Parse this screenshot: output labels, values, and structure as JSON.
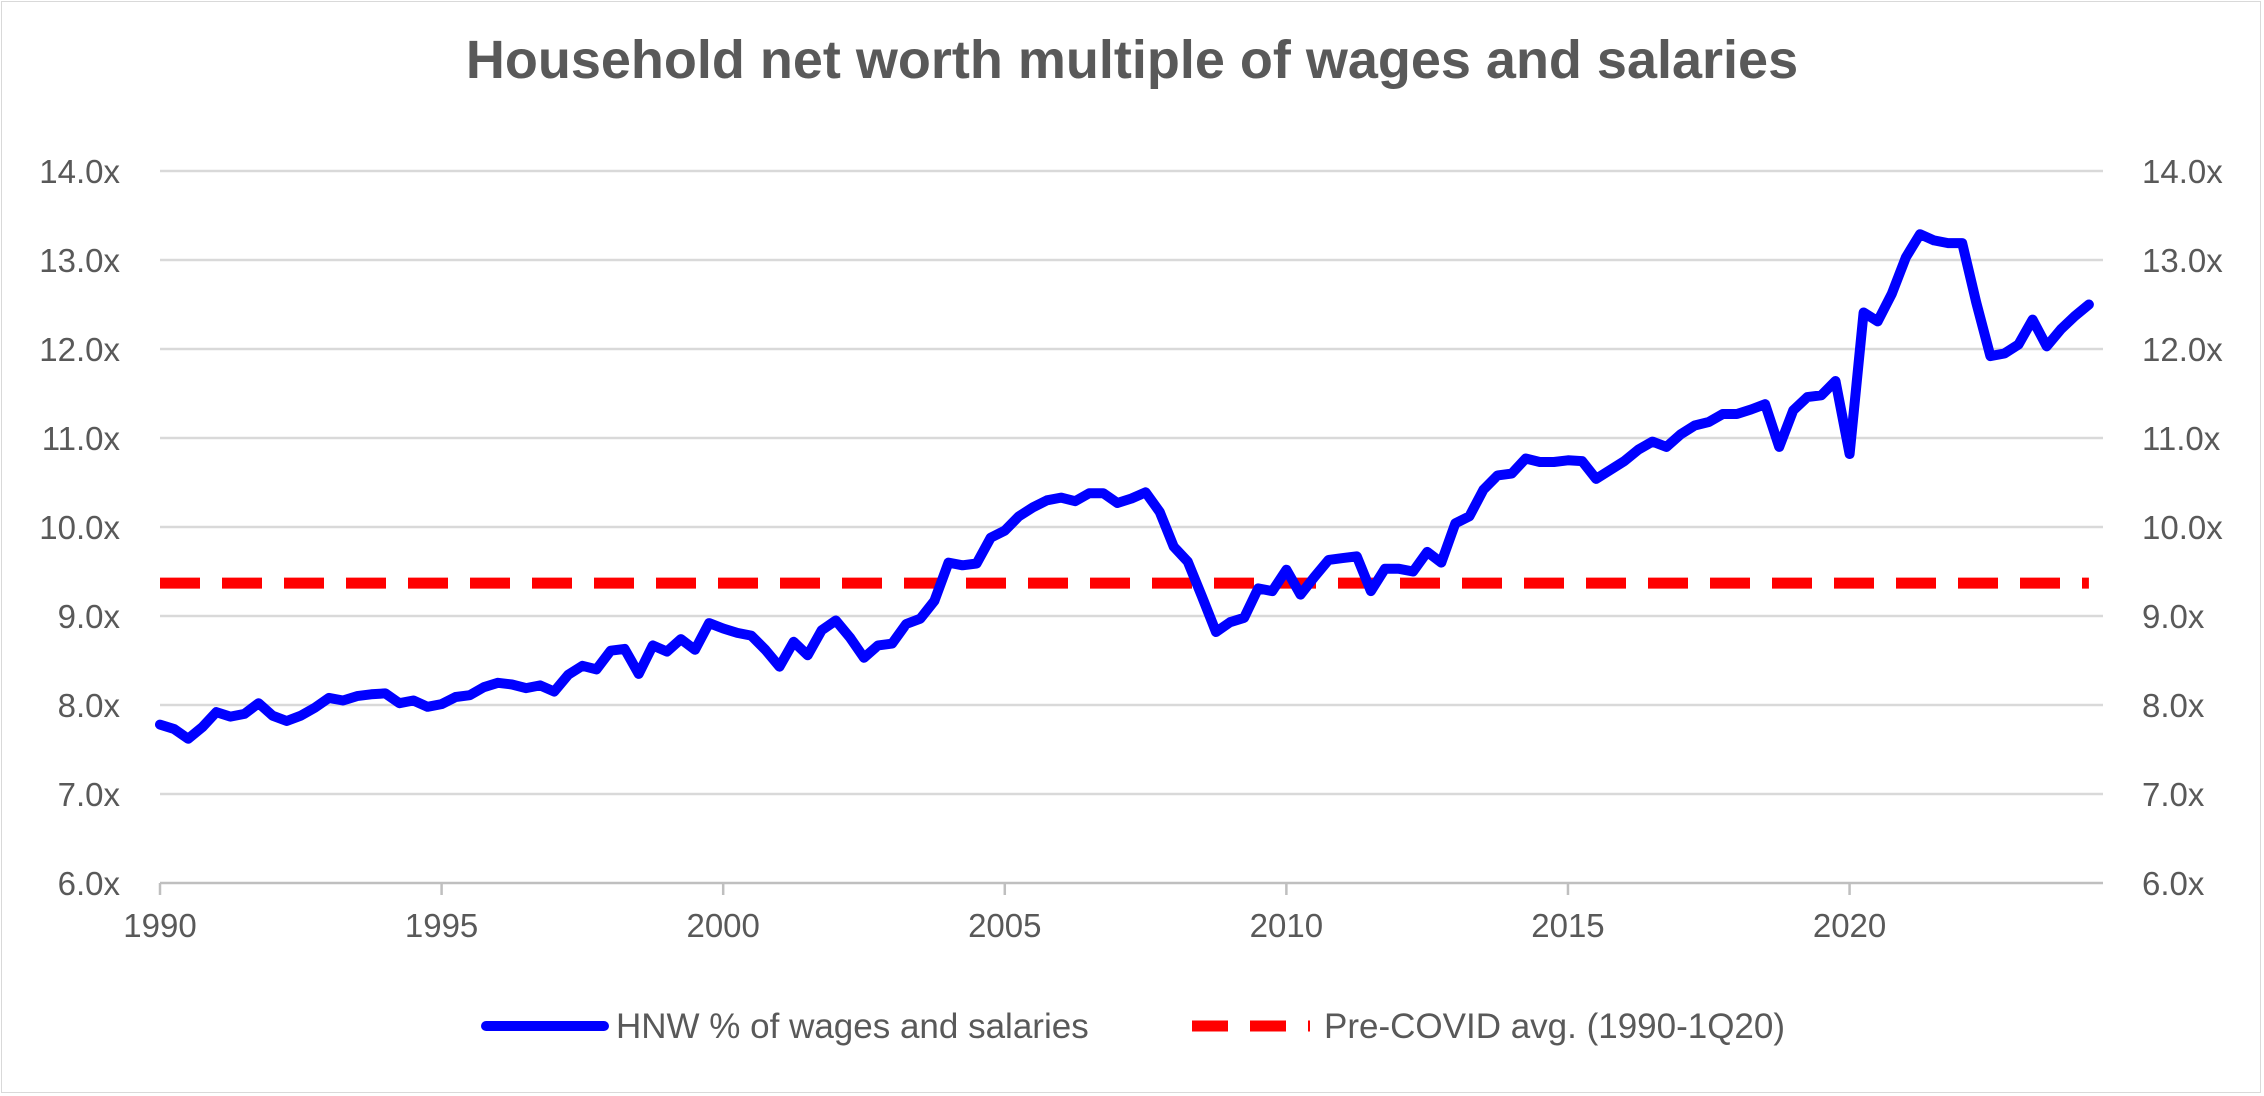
{
  "chart_data": {
    "type": "line",
    "title": "Household net worth multiple of wages and salaries",
    "xlabel": "",
    "ylabel": "",
    "xlim": [
      1990,
      2024.5
    ],
    "ylim": [
      6.0,
      14.0
    ],
    "x_ticks": [
      1990,
      1995,
      2000,
      2005,
      2010,
      2015,
      2020
    ],
    "x_tick_labels": [
      "1990",
      "1995",
      "2000",
      "2005",
      "2010",
      "2015",
      "2020"
    ],
    "y_ticks": [
      6,
      7,
      8,
      9,
      10,
      11,
      12,
      13,
      14
    ],
    "y_tick_labels": [
      "6.0x",
      "7.0x",
      "8.0x",
      "9.0x",
      "10.0x",
      "11.0x",
      "12.0x",
      "13.0x",
      "14.0x"
    ],
    "secondary_y_tick_labels": [
      "6.0x",
      "7.0x",
      "8.0x",
      "9.0x",
      "10.0x",
      "11.0x",
      "12.0x",
      "13.0x",
      "14.0x"
    ],
    "grid": true,
    "legend_position": "bottom",
    "series": [
      {
        "name": "HNW % of wages and salaries",
        "color": "#0000ff",
        "style": "solid",
        "x": [
          1990.0,
          1990.25,
          1990.5,
          1990.75,
          1991.0,
          1991.25,
          1991.5,
          1991.75,
          1992.0,
          1992.25,
          1992.5,
          1992.75,
          1993.0,
          1993.25,
          1993.5,
          1993.75,
          1994.0,
          1994.25,
          1994.5,
          1994.75,
          1995.0,
          1995.25,
          1995.5,
          1995.75,
          1996.0,
          1996.25,
          1996.5,
          1996.75,
          1997.0,
          1997.25,
          1997.5,
          1997.75,
          1998.0,
          1998.25,
          1998.5,
          1998.75,
          1999.0,
          1999.25,
          1999.5,
          1999.75,
          2000.0,
          2000.25,
          2000.5,
          2000.75,
          2001.0,
          2001.25,
          2001.5,
          2001.75,
          2002.0,
          2002.25,
          2002.5,
          2002.75,
          2003.0,
          2003.25,
          2003.5,
          2003.75,
          2004.0,
          2004.25,
          2004.5,
          2004.75,
          2005.0,
          2005.25,
          2005.5,
          2005.75,
          2006.0,
          2006.25,
          2006.5,
          2006.75,
          2007.0,
          2007.25,
          2007.5,
          2007.75,
          2008.0,
          2008.25,
          2008.5,
          2008.75,
          2009.0,
          2009.25,
          2009.5,
          2009.75,
          2010.0,
          2010.25,
          2010.5,
          2010.75,
          2011.0,
          2011.25,
          2011.5,
          2011.75,
          2012.0,
          2012.25,
          2012.5,
          2012.75,
          2013.0,
          2013.25,
          2013.5,
          2013.75,
          2014.0,
          2014.25,
          2014.5,
          2014.75,
          2015.0,
          2015.25,
          2015.5,
          2015.75,
          2016.0,
          2016.25,
          2016.5,
          2016.75,
          2017.0,
          2017.25,
          2017.5,
          2017.75,
          2018.0,
          2018.25,
          2018.5,
          2018.75,
          2019.0,
          2019.25,
          2019.5,
          2019.75,
          2020.0,
          2020.25,
          2020.5,
          2020.75,
          2021.0,
          2021.25,
          2021.5,
          2021.75,
          2022.0,
          2022.25,
          2022.5,
          2022.75,
          2023.0,
          2023.25,
          2023.5,
          2023.75,
          2024.0,
          2024.25
        ],
        "values": [
          7.78,
          7.73,
          7.62,
          7.75,
          7.92,
          7.87,
          7.9,
          8.02,
          7.88,
          7.82,
          7.88,
          7.97,
          8.08,
          8.05,
          8.1,
          8.12,
          8.13,
          8.02,
          8.05,
          7.98,
          8.01,
          8.09,
          8.11,
          8.2,
          8.25,
          8.23,
          8.19,
          8.22,
          8.15,
          8.34,
          8.44,
          8.4,
          8.61,
          8.63,
          8.35,
          8.67,
          8.6,
          8.74,
          8.62,
          8.92,
          8.86,
          8.81,
          8.78,
          8.62,
          8.43,
          8.71,
          8.56,
          8.84,
          8.95,
          8.76,
          8.53,
          8.67,
          8.69,
          8.91,
          8.97,
          9.17,
          9.6,
          9.57,
          9.59,
          9.88,
          9.96,
          10.12,
          10.22,
          10.3,
          10.33,
          10.29,
          10.38,
          10.38,
          10.27,
          10.32,
          10.39,
          10.17,
          9.78,
          9.61,
          9.22,
          8.82,
          8.93,
          8.98,
          9.31,
          9.28,
          9.52,
          9.24,
          9.44,
          9.63,
          9.65,
          9.67,
          9.28,
          9.53,
          9.53,
          9.5,
          9.72,
          9.6,
          10.04,
          10.12,
          10.42,
          10.58,
          10.6,
          10.77,
          10.73,
          10.73,
          10.75,
          10.74,
          10.54,
          10.64,
          10.74,
          10.87,
          10.96,
          10.9,
          11.04,
          11.14,
          11.18,
          11.27,
          11.27,
          11.32,
          11.38,
          10.9,
          11.31,
          11.46,
          11.48,
          11.64,
          10.82,
          12.41,
          12.31,
          12.62,
          13.03,
          13.29,
          13.22,
          13.19,
          13.19,
          12.52,
          11.92,
          11.95,
          12.05,
          12.33,
          12.03,
          12.22,
          12.37,
          12.5
        ]
      },
      {
        "name": "Pre-COVID avg. (1990-1Q20)",
        "color": "#ff0000",
        "style": "dashed",
        "x": [
          1990.0,
          2024.25
        ],
        "values": [
          9.37,
          9.37
        ]
      }
    ]
  }
}
